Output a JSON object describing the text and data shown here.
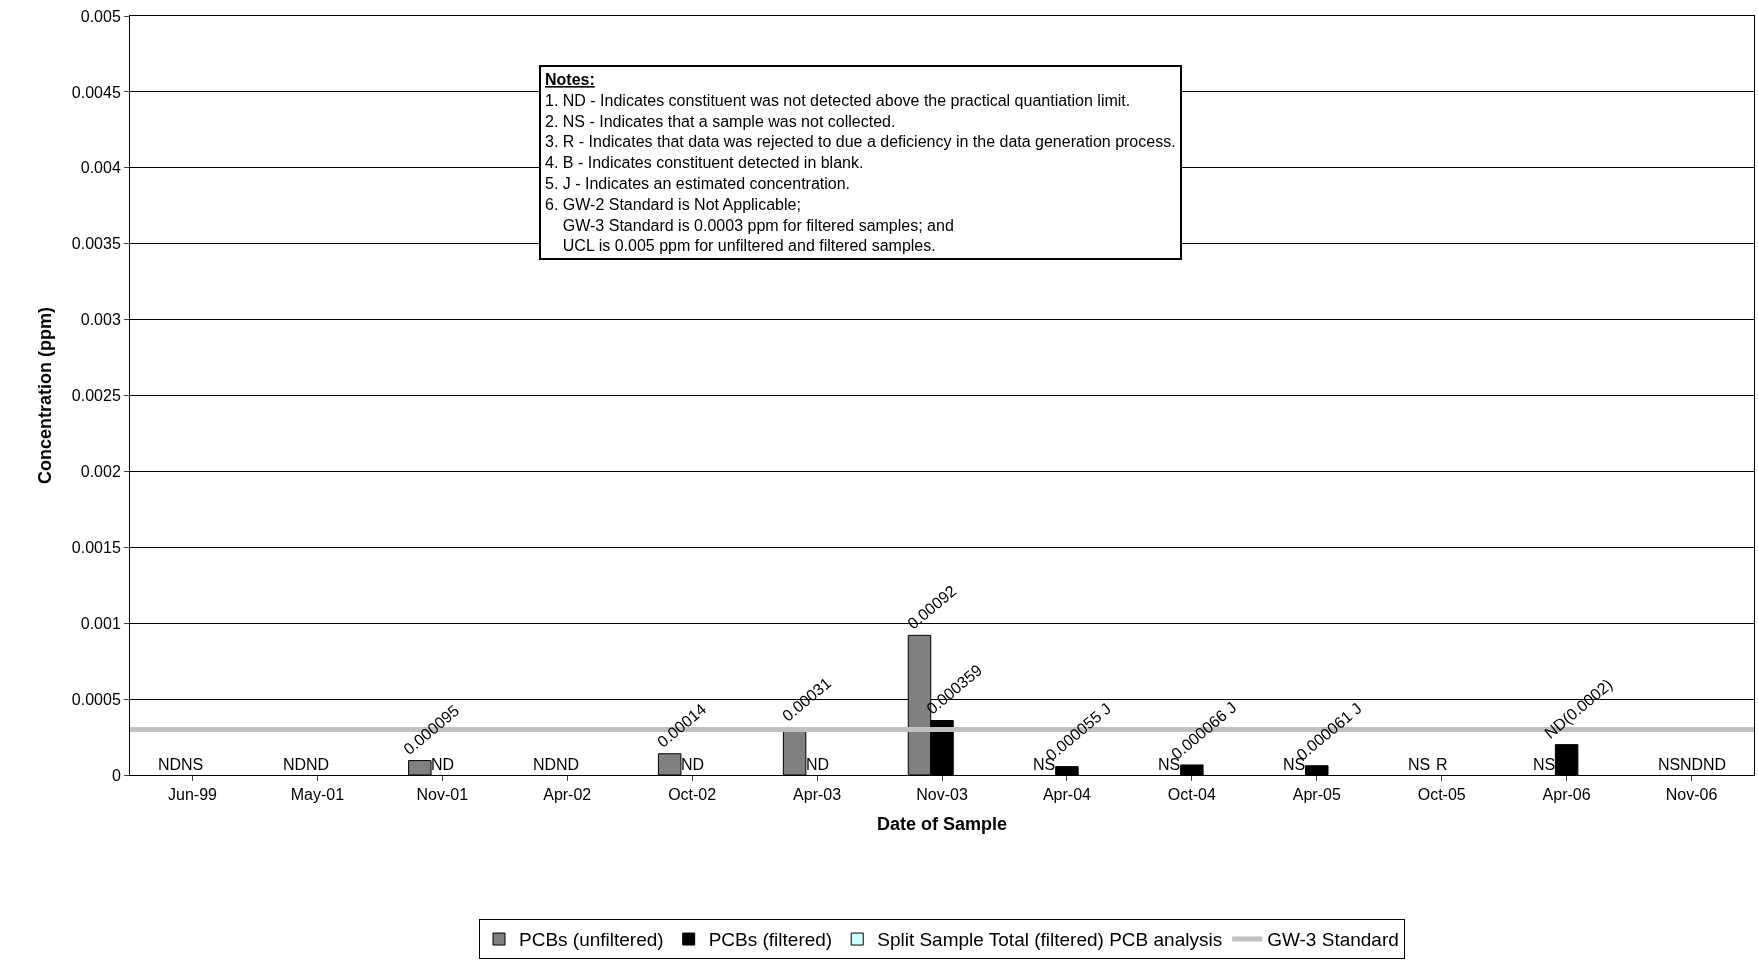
{
  "chart_data": {
    "type": "bar",
    "categories": [
      "Jun-99",
      "May-01",
      "Nov-01",
      "Apr-02",
      "Oct-02",
      "Apr-03",
      "Nov-03",
      "Apr-04",
      "Oct-04",
      "Apr-05",
      "Oct-05",
      "Apr-06",
      "Nov-06"
    ],
    "series": [
      {
        "name": "PCBs (unfiltered)",
        "color": "#808080",
        "values": [
          null,
          null,
          9.5e-05,
          null,
          0.00014,
          0.00031,
          0.00092,
          null,
          null,
          null,
          null,
          null,
          null
        ],
        "value_labels": [
          "ND",
          "ND",
          "0.000095",
          "ND",
          "0.00014",
          "0.00031",
          "0.00092",
          "NS",
          "NS",
          "NS",
          "NS",
          "NS",
          "NS"
        ]
      },
      {
        "name": "PCBs (filtered)",
        "color": "#000000",
        "values": [
          null,
          null,
          null,
          null,
          null,
          null,
          0.000359,
          5.5e-05,
          6.6e-05,
          6.1e-05,
          null,
          0.0002,
          null
        ],
        "value_labels": [
          "NS",
          "ND",
          "ND",
          "ND",
          "ND",
          "ND",
          "0.000359",
          "0.000055 J",
          "0.000066 J",
          "0.000061 J",
          "R",
          "ND(0.0002)",
          "ND"
        ]
      },
      {
        "name": "Split Sample Total (filtered) PCB analysis",
        "color": "#ccffff",
        "values": [
          null,
          null,
          null,
          null,
          null,
          null,
          null,
          null,
          null,
          null,
          null,
          null,
          null
        ],
        "value_labels": [
          null,
          null,
          null,
          null,
          null,
          null,
          null,
          null,
          null,
          null,
          null,
          null,
          "ND"
        ]
      }
    ],
    "ref_lines": [
      {
        "axis": "y",
        "value": 0.0003,
        "label": "GW-3 Standard",
        "color": "#c0c0c0"
      }
    ],
    "xlabel": "Date of Sample",
    "ylabel": "Concentration (ppm)",
    "ylim": [
      0,
      0.005
    ],
    "yticks": [
      0,
      0.0005,
      0.001,
      0.0015,
      0.002,
      0.0025,
      0.003,
      0.0035,
      0.004,
      0.0045,
      0.005
    ],
    "grid": "y",
    "legend": "bottom",
    "annotations": [
      "Notes:\n1. ND - Indicates constituent was not detected above the practical quantiation limit.\n2. NS - Indicates that a sample was not collected.\n3. R - Indicates that data was rejected to due a deficiency in the data generation process.\n4. B - Indicates constituent detected in blank.\n5. J - Indicates an estimated concentration.\n6. GW-2 Standard is Not Applicable;\n    GW-3 Standard is 0.0003 ppm for filtered samples; and\n    UCL is 0.005 ppm for unfiltered and filtered samples."
    ]
  }
}
